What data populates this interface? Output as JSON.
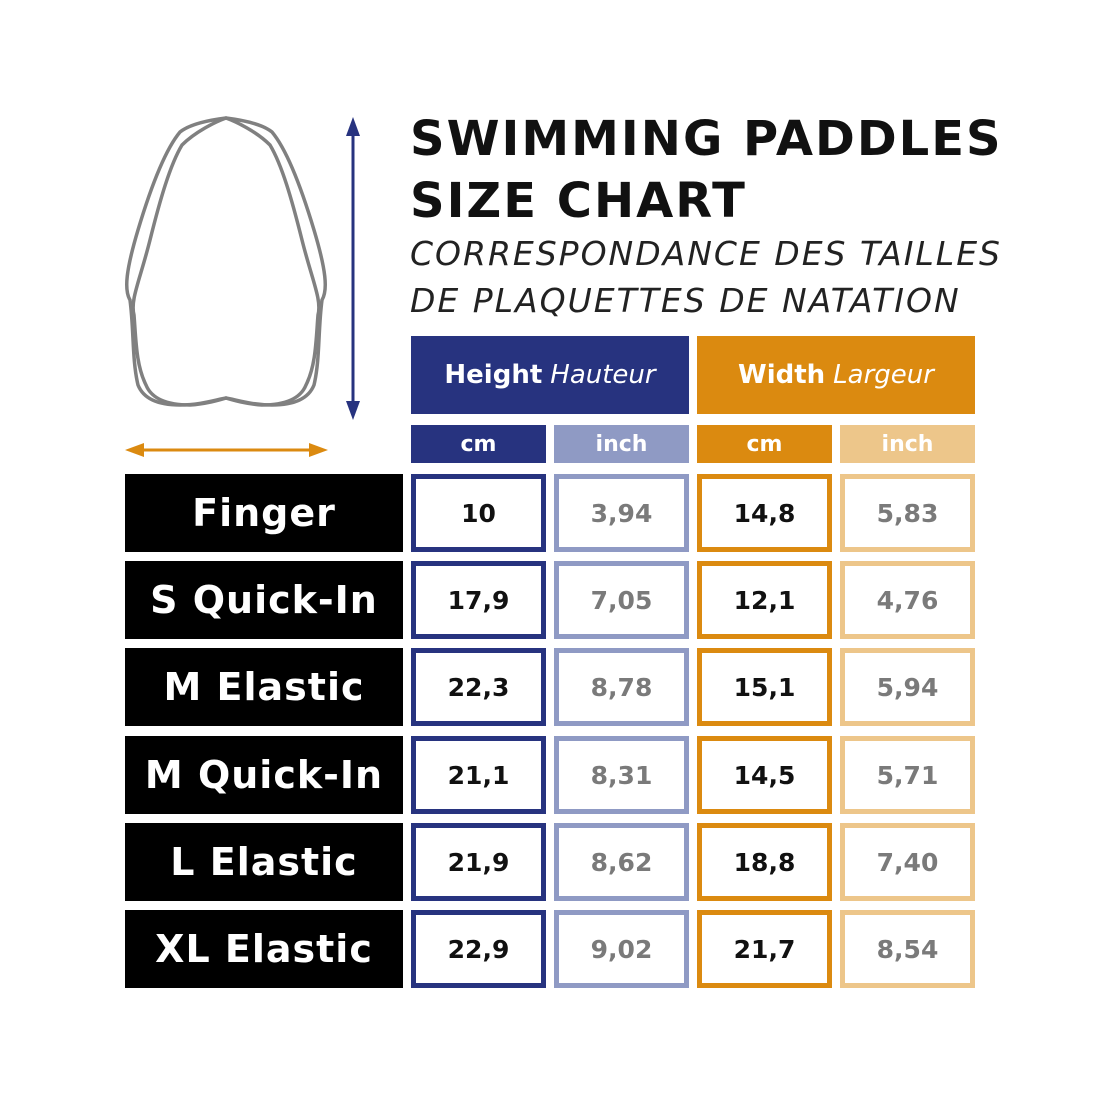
{
  "title_lines": [
    "SWIMMING PADDLES",
    "SIZE CHART"
  ],
  "subtitle_lines": [
    "CORRESPONDANCE DES TAILLES",
    "DE PLAQUETTES DE NATATION"
  ],
  "colors": {
    "height_dark": "#27337f",
    "height_light": "#8f9ac4",
    "width_dark": "#db8a10",
    "width_light": "#edc68a",
    "outline": "#808080"
  },
  "icons": {
    "paddle": "paddle-outline-icon",
    "height_arrow": "vertical-double-arrow-icon",
    "width_arrow": "horizontal-double-arrow-icon"
  },
  "chart_data": {
    "type": "table",
    "groups": [
      {
        "label": "Height",
        "label_fr": "Hauteur",
        "units": [
          "cm",
          "inch"
        ]
      },
      {
        "label": "Width",
        "label_fr": "Largeur",
        "units": [
          "cm",
          "inch"
        ]
      }
    ],
    "rows": [
      {
        "name": "Finger",
        "values": [
          "10",
          "3,94",
          "14,8",
          "5,83"
        ]
      },
      {
        "name": "S Quick-In",
        "values": [
          "17,9",
          "7,05",
          "12,1",
          "4,76"
        ]
      },
      {
        "name": "M Elastic",
        "values": [
          "22,3",
          "8,78",
          "15,1",
          "5,94"
        ]
      },
      {
        "name": "M Quick-In",
        "values": [
          "21,1",
          "8,31",
          "14,5",
          "5,71"
        ]
      },
      {
        "name": "L Elastic",
        "values": [
          "21,9",
          "8,62",
          "18,8",
          "7,40"
        ]
      },
      {
        "name": "XL Elastic",
        "values": [
          "22,9",
          "9,02",
          "21,7",
          "8,54"
        ]
      }
    ]
  }
}
